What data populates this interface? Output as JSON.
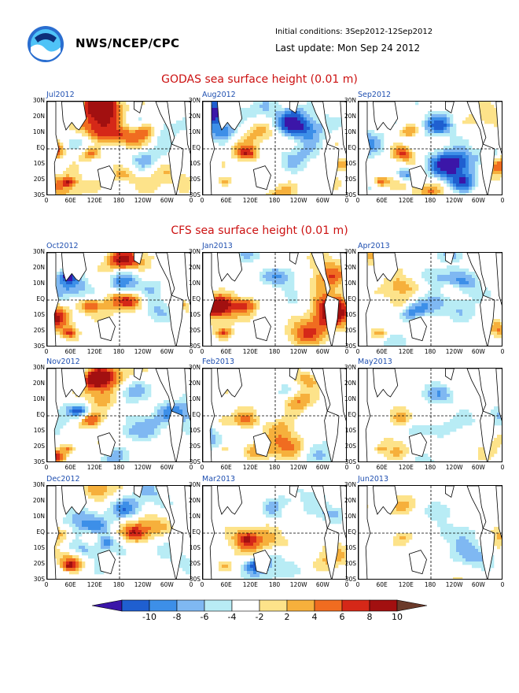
{
  "header": {
    "org": "NWS/NCEP/CPC",
    "initial_conditions": "Initial conditions: 3Sep2012-12Sep2012",
    "last_update": "Last update: Mon Sep 24 2012"
  },
  "sections": [
    {
      "title": "GODAS sea surface height (0.01 m)"
    },
    {
      "title": "CFS sea surface height (0.01 m)"
    }
  ],
  "panels": [
    {
      "label": "Jul2012",
      "amp": 1.0,
      "seed": 1
    },
    {
      "label": "Aug2012",
      "amp": 1.0,
      "seed": 2
    },
    {
      "label": "Sep2012",
      "amp": 1.0,
      "seed": 3
    },
    {
      "label": "Oct2012",
      "amp": 0.9,
      "seed": 4
    },
    {
      "label": "Jan2013",
      "amp": 0.75,
      "seed": 5
    },
    {
      "label": "Apr2013",
      "amp": 0.6,
      "seed": 6
    },
    {
      "label": "Nov2012",
      "amp": 0.9,
      "seed": 7
    },
    {
      "label": "Feb2013",
      "amp": 0.7,
      "seed": 8
    },
    {
      "label": "May2013",
      "amp": 0.55,
      "seed": 9
    },
    {
      "label": "Dec2012",
      "amp": 0.85,
      "seed": 10
    },
    {
      "label": "Mar2013",
      "amp": 0.65,
      "seed": 11
    },
    {
      "label": "Jun2013",
      "amp": 0.5,
      "seed": 12
    }
  ],
  "y_ticks": [
    "30N",
    "20N",
    "10N",
    "EQ",
    "10S",
    "20S",
    "30S"
  ],
  "x_ticks": [
    "0",
    "60E",
    "120E",
    "180",
    "120W",
    "60W",
    "0"
  ],
  "colorbar": {
    "labels": [
      "-10",
      "-8",
      "-6",
      "-4",
      "-2",
      "2",
      "4",
      "6",
      "8",
      "10"
    ],
    "colors": [
      "#3b16a8",
      "#1f5fd0",
      "#3d8fe8",
      "#7fb8f2",
      "#b8ecf5",
      "#ffffff",
      "#fde38a",
      "#f6b03c",
      "#f06c20",
      "#d52818",
      "#a21010",
      "#6b3a2a"
    ]
  }
}
